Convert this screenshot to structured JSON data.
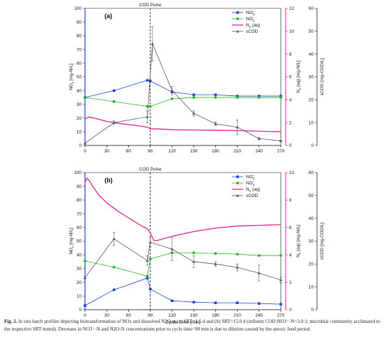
{
  "chart_data": [
    {
      "type": "line",
      "panel_label": "(a)",
      "pulse_label": "COD Pulse",
      "pulse_x": 90,
      "xlabel": "",
      "xlim": [
        0,
        270
      ],
      "xticks": [
        0,
        30,
        60,
        90,
        120,
        150,
        180,
        210,
        240,
        270
      ],
      "ylabel_left": "NOx [mg-N/L]",
      "ylim_left": [
        0,
        100
      ],
      "yticks_left": [
        0,
        10,
        20,
        30,
        40,
        50,
        60,
        70,
        80,
        90,
        100
      ],
      "ylabel_right1": "N2O (aq) [mg-N/L]",
      "ylim_right1": [
        0,
        12
      ],
      "yticks_right1": [
        0,
        2,
        4,
        6,
        8,
        10,
        12
      ],
      "ylabel_right2": "sCOD [mg-COD/L]",
      "ylim_right2": [
        0,
        60
      ],
      "yticks_right2": [
        0,
        10,
        20,
        30,
        40,
        50,
        60
      ],
      "legend_position": "top-right",
      "series": [
        {
          "name": "NO3-",
          "axis": "left",
          "color": "#1f3fd0",
          "marker": "square",
          "x": [
            0,
            40,
            86,
            90,
            120,
            150,
            180,
            210,
            240,
            270
          ],
          "y": [
            35,
            40,
            47.5,
            47,
            39,
            37,
            37,
            36,
            36,
            36
          ]
        },
        {
          "name": "NO2-",
          "axis": "left",
          "color": "#22b422",
          "marker": "circle",
          "x": [
            0,
            40,
            86,
            90,
            120,
            150,
            180,
            210,
            240,
            270
          ],
          "y": [
            35,
            32,
            28.5,
            28.5,
            34,
            35,
            35,
            35,
            35,
            35
          ]
        },
        {
          "name": "N2O (aq)",
          "axis": "right1",
          "color": "#e0208a",
          "marker": "none",
          "x": [
            0,
            5,
            15,
            30,
            50,
            70,
            86,
            90,
            100,
            120,
            150,
            180,
            210,
            240,
            270
          ],
          "y": [
            2.3,
            2.5,
            2.35,
            2.1,
            1.9,
            1.75,
            1.6,
            1.45,
            1.45,
            1.38,
            1.35,
            1.33,
            1.3,
            1.25,
            1.2
          ]
        },
        {
          "name": "sCOD",
          "axis": "right2",
          "color": "#555555",
          "marker": "triangle",
          "x": [
            0,
            40,
            86,
            93,
            120,
            150,
            180,
            210,
            240,
            270
          ],
          "y": [
            1,
            10,
            12.5,
            44.5,
            24,
            14,
            9.5,
            8,
            3,
            2
          ],
          "err": [
            0,
            0.8,
            2.5,
            7.5,
            1.8,
            1.2,
            0.8,
            3.2,
            0.5,
            0.3
          ]
        }
      ]
    },
    {
      "type": "line",
      "panel_label": "(b)",
      "pulse_label": "COD Pulse",
      "pulse_x": 90,
      "xlabel": "Cycle Time [min]",
      "xlim": [
        0,
        270
      ],
      "xticks": [
        0,
        30,
        60,
        90,
        120,
        150,
        180,
        210,
        240,
        270
      ],
      "ylabel_left": "NOx [mg-N/L]",
      "ylim_left": [
        0,
        100
      ],
      "yticks_left": [
        0,
        10,
        20,
        30,
        40,
        50,
        60,
        70,
        80,
        90,
        100
      ],
      "ylabel_right1": "N2O (aq) [mg-N/L]",
      "ylim_right1": [
        0,
        10
      ],
      "yticks_right1": [
        0,
        2,
        4,
        6,
        8,
        10
      ],
      "ylabel_right2": "sCOD [mg-COD/L]",
      "ylim_right2": [
        0,
        60
      ],
      "yticks_right2": [
        0,
        10,
        20,
        30,
        40,
        50,
        60
      ],
      "legend_position": "top-right",
      "series": [
        {
          "name": "NO3-",
          "axis": "left",
          "color": "#1f3fd0",
          "marker": "square",
          "x": [
            0,
            40,
            86,
            90,
            120,
            150,
            180,
            210,
            240,
            270
          ],
          "y": [
            3,
            14.5,
            23,
            15,
            6.5,
            5.5,
            5,
            5,
            4.5,
            4
          ]
        },
        {
          "name": "NO2-",
          "axis": "left",
          "color": "#22b422",
          "marker": "circle",
          "x": [
            0,
            40,
            86,
            90,
            120,
            150,
            180,
            210,
            240,
            270
          ],
          "y": [
            35.5,
            31,
            24.5,
            37,
            41.5,
            41.5,
            41,
            40.5,
            39.5,
            39.5
          ]
        },
        {
          "name": "N2O (aq)",
          "axis": "right1",
          "color": "#e0208a",
          "marker": "none",
          "x": [
            0,
            3,
            6,
            12,
            20,
            30,
            45,
            60,
            75,
            86,
            90,
            95,
            100,
            110,
            120,
            150,
            180,
            210,
            240,
            270
          ],
          "y": [
            9.3,
            9.6,
            9.4,
            8.9,
            8.3,
            7.8,
            7.2,
            6.7,
            6.2,
            5.9,
            5.6,
            5.05,
            5.05,
            5.2,
            5.35,
            5.7,
            5.95,
            6.1,
            6.15,
            6.2
          ]
        },
        {
          "name": "sCOD",
          "axis": "right2",
          "color": "#555555",
          "marker": "triangle",
          "x": [
            0,
            40,
            86,
            90,
            120,
            150,
            180,
            210,
            240,
            270
          ],
          "y": [
            14,
            31,
            21.5,
            29.5,
            26.5,
            21,
            20,
            18.5,
            16,
            13
          ],
          "err": [
            0.5,
            2.8,
            2,
            2,
            5,
            2.5,
            1,
            1.5,
            3.5,
            1.2
          ]
        }
      ]
    }
  ],
  "caption": {
    "fig_label": "Fig. 2.",
    "text": " In situ batch profiles depicting biotransformation of NOx and dissolved N2O at (a) SRT=1.5 d and (b) SRT=15.0 d (influent COD:NO3⁻-N=3.0:1; microbial community acclimated to the respective SRT tested). Decrease in NO3⁻-N and N2O-N concentrations prior to cycle time=90 min is due to dilution caused by the anoxic feed period."
  }
}
